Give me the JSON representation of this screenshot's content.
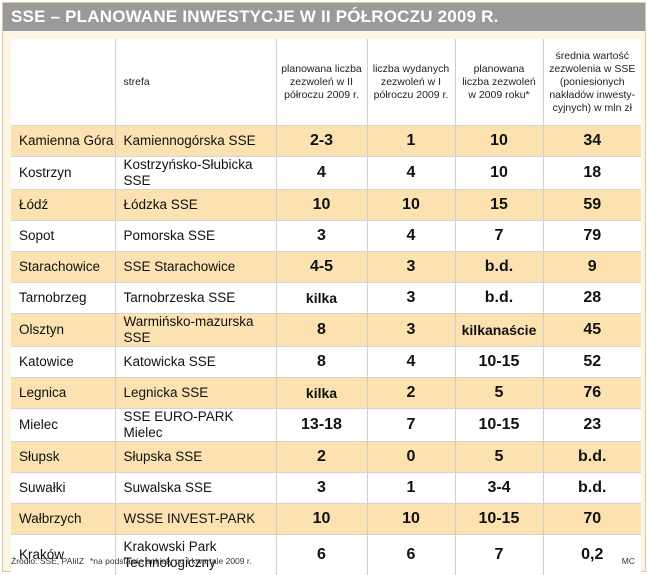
{
  "title": "SSE – PLANOWANE INWESTYCJE W II PÓŁROCZU 2009 R.",
  "chart_data": {
    "type": "table",
    "columns": [
      "",
      "strefa",
      "planowana liczba zezwoleń w II półroczu 2009 r.",
      "liczba wydanych zezwoleń w I półroczu 2009 r.",
      "planowana liczba zezwoleń w 2009 roku*",
      "średnia wartość zezwolenia w SSE (poniesionych nakładów inwesty-cyjnych) w mln zł"
    ],
    "rows": [
      {
        "city": "Kamienna Góra",
        "zone": "Kamiennogórska SSE",
        "planned_h2": "2-3",
        "issued_h1": "1",
        "planned_2009": "10",
        "avg_value": "34"
      },
      {
        "city": "Kostrzyn",
        "zone": "Kostrzyńsko-Słubicka SSE",
        "planned_h2": "4",
        "issued_h1": "4",
        "planned_2009": "10",
        "avg_value": "18"
      },
      {
        "city": "Łódź",
        "zone": "Łódzka SSE",
        "planned_h2": "10",
        "issued_h1": "10",
        "planned_2009": "15",
        "avg_value": "59"
      },
      {
        "city": "Sopot",
        "zone": "Pomorska SSE",
        "planned_h2": "3",
        "issued_h1": "4",
        "planned_2009": "7",
        "avg_value": "79"
      },
      {
        "city": "Starachowice",
        "zone": "SSE Starachowice",
        "planned_h2": "4-5",
        "issued_h1": "3",
        "planned_2009": "b.d.",
        "avg_value": "9"
      },
      {
        "city": "Tarnobrzeg",
        "zone": "Tarnobrzeska SSE",
        "planned_h2": "kilka",
        "issued_h1": "3",
        "planned_2009": "b.d.",
        "avg_value": "28"
      },
      {
        "city": "Olsztyn",
        "zone": "Warmińsko-mazurska SSE",
        "planned_h2": "8",
        "issued_h1": "3",
        "planned_2009": "kilkanaście",
        "avg_value": "45"
      },
      {
        "city": "Katowice",
        "zone": "Katowicka SSE",
        "planned_h2": "8",
        "issued_h1": "4",
        "planned_2009": "10-15",
        "avg_value": "52"
      },
      {
        "city": "Legnica",
        "zone": "Legnicka SSE",
        "planned_h2": "kilka",
        "issued_h1": "2",
        "planned_2009": "5",
        "avg_value": "76"
      },
      {
        "city": "Mielec",
        "zone": "SSE EURO-PARK Mielec",
        "planned_h2": "13-18",
        "issued_h1": "7",
        "planned_2009": "10-15",
        "avg_value": "23"
      },
      {
        "city": "Słupsk",
        "zone": "Słupska SSE",
        "planned_h2": "2",
        "issued_h1": "0",
        "planned_2009": "5",
        "avg_value": "b.d."
      },
      {
        "city": "Suwałki",
        "zone": "Suwalska SSE",
        "planned_h2": "3",
        "issued_h1": "1",
        "planned_2009": "3-4",
        "avg_value": "b.d."
      },
      {
        "city": "Wałbrzych",
        "zone": "WSSE INVEST-PARK",
        "planned_h2": "10",
        "issued_h1": "10",
        "planned_2009": "10-15",
        "avg_value": "70"
      },
      {
        "city": "Kraków",
        "zone": "Krakowski Park Technologiczny",
        "planned_h2": "6",
        "issued_h1": "6",
        "planned_2009": "7",
        "avg_value": "0,2"
      }
    ]
  },
  "footer": {
    "source": "Źródło: SSE, PAIiIZ",
    "note": "*na podstawie ankiety po I kwartale 2009 r.",
    "credit": "MC"
  },
  "colors": {
    "title_bar": "#9a9a9a",
    "highlight_row": "#fbe2b0",
    "plain_row": "#ffffff",
    "frame_background": "#fdf6e6"
  }
}
